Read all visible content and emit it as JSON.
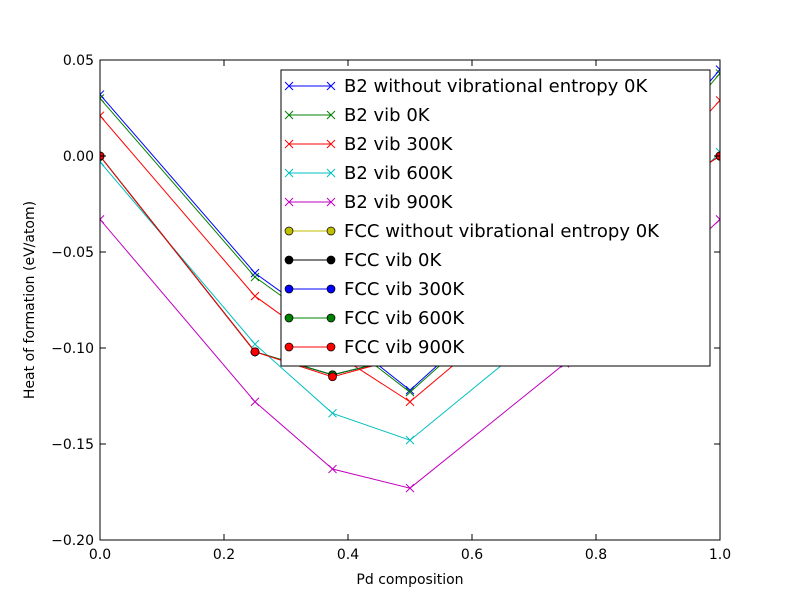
{
  "chart_data": {
    "type": "line",
    "xlabel": "Pd composition",
    "ylabel": "Heat of formation (eV/atom)",
    "xlim": [
      0.0,
      1.0
    ],
    "ylim": [
      -0.2,
      0.05
    ],
    "x_ticks": [
      "0.0",
      "0.2",
      "0.4",
      "0.6",
      "0.8",
      "1.0"
    ],
    "y_ticks": [
      "0.05",
      "0.00",
      "−0.05",
      "−0.10",
      "−0.15",
      "−0.20"
    ],
    "grid": false,
    "legend_position": "top-right",
    "series": [
      {
        "name": "B2 without vibrational entropy 0K",
        "marker": "x",
        "color": "#0000ff",
        "x": [
          0.0,
          0.25,
          0.375,
          0.5,
          0.75,
          1.0
        ],
        "y": [
          0.032,
          -0.061,
          -0.09,
          -0.122,
          -0.049,
          0.045
        ]
      },
      {
        "name": "B2 vib 0K",
        "marker": "x",
        "color": "#008000",
        "x": [
          0.0,
          0.25,
          0.375,
          0.5,
          0.75,
          1.0
        ],
        "y": [
          0.03,
          -0.063,
          -0.092,
          -0.123,
          -0.051,
          0.043
        ]
      },
      {
        "name": "B2 vib 300K",
        "marker": "x",
        "color": "#ff0000",
        "x": [
          0.0,
          0.25,
          0.375,
          0.5,
          0.75,
          1.0
        ],
        "y": [
          0.021,
          -0.073,
          -0.102,
          -0.128,
          -0.06,
          0.029
        ]
      },
      {
        "name": "B2 vib 600K",
        "marker": "x",
        "color": "#00bfbf",
        "x": [
          0.0,
          0.25,
          0.375,
          0.5,
          0.75,
          1.0
        ],
        "y": [
          -0.003,
          -0.098,
          -0.134,
          -0.148,
          -0.082,
          0.002
        ]
      },
      {
        "name": "B2 vib 900K",
        "marker": "x",
        "color": "#bf00bf",
        "x": [
          0.0,
          0.25,
          0.375,
          0.5,
          0.75,
          1.0
        ],
        "y": [
          -0.033,
          -0.128,
          -0.163,
          -0.173,
          -0.108,
          -0.033
        ]
      },
      {
        "name": "FCC  without vibrational entropy 0K",
        "marker": "o",
        "color": "#bfbf00",
        "x": [
          0.0,
          0.25,
          0.375,
          0.5,
          0.75,
          1.0
        ],
        "y": [
          0.0,
          -0.102,
          -0.114,
          -0.104,
          -0.05,
          0.0
        ]
      },
      {
        "name": "FCC vib 0K",
        "marker": "o",
        "color": "#000000",
        "x": [
          0.0,
          0.25,
          0.375,
          0.5,
          0.75,
          1.0
        ],
        "y": [
          0.0,
          -0.102,
          -0.114,
          -0.104,
          -0.05,
          0.0
        ]
      },
      {
        "name": "FCC vib 300K",
        "marker": "o",
        "color": "#0000ff",
        "x": [
          0.0,
          0.25,
          0.375,
          0.5,
          0.75,
          1.0
        ],
        "y": [
          0.0,
          -0.102,
          -0.114,
          -0.104,
          -0.05,
          0.0
        ]
      },
      {
        "name": "FCC vib 600K",
        "marker": "o",
        "color": "#008000",
        "x": [
          0.0,
          0.25,
          0.375,
          0.5,
          0.75,
          1.0
        ],
        "y": [
          0.0,
          -0.102,
          -0.114,
          -0.104,
          -0.05,
          0.0
        ]
      },
      {
        "name": "FCC vib 900K",
        "marker": "o",
        "color": "#ff0000",
        "x": [
          0.0,
          0.25,
          0.375,
          0.5,
          0.75,
          1.0
        ],
        "y": [
          0.0,
          -0.102,
          -0.115,
          -0.104,
          -0.05,
          0.0
        ]
      }
    ]
  }
}
